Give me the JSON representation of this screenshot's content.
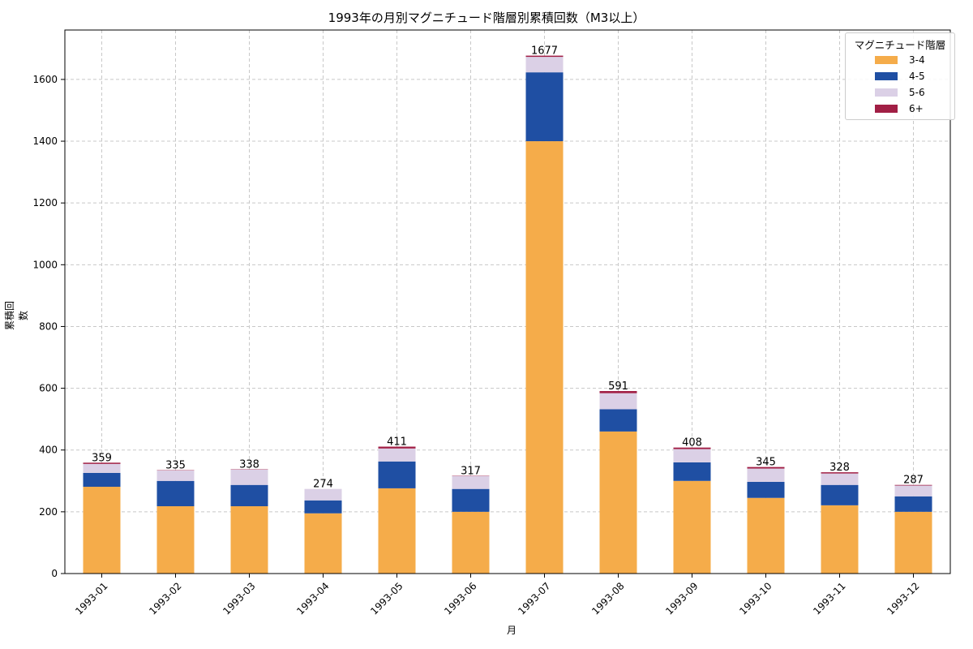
{
  "chart_data": {
    "type": "bar",
    "stacked": true,
    "title": "1993年の月別マグニチュード階層別累積回数（M3以上）",
    "xlabel": "月",
    "ylabel": "累積回数",
    "ylim": [
      0,
      1760
    ],
    "yticks": [
      0,
      200,
      400,
      600,
      800,
      1000,
      1200,
      1400,
      1600
    ],
    "grid": true,
    "legend_title": "マグニチュード階層",
    "legend_position": "upper right",
    "categories": [
      "1993-01",
      "1993-02",
      "1993-03",
      "1993-04",
      "1993-05",
      "1993-06",
      "1993-07",
      "1993-08",
      "1993-09",
      "1993-10",
      "1993-11",
      "1993-12"
    ],
    "series": [
      {
        "name": "3-4",
        "color": "#F5AC4A",
        "values": [
          281,
          218,
          218,
          195,
          276,
          200,
          1400,
          460,
          300,
          245,
          221,
          200
        ]
      },
      {
        "name": "4-5",
        "color": "#1F4FA3",
        "values": [
          45,
          82,
          69,
          42,
          87,
          74,
          223,
          72,
          60,
          52,
          66,
          50
        ]
      },
      {
        "name": "5-6",
        "color": "#DBD0E6",
        "values": [
          29,
          34,
          50,
          37,
          42,
          42,
          50,
          52,
          43,
          43,
          37,
          35
        ]
      },
      {
        "name": "6+",
        "color": "#A11F45",
        "values": [
          4,
          1,
          1,
          0,
          6,
          1,
          4,
          7,
          5,
          5,
          4,
          2
        ]
      }
    ],
    "totals": [
      359,
      335,
      338,
      274,
      411,
      317,
      1677,
      591,
      408,
      345,
      328,
      287
    ]
  }
}
